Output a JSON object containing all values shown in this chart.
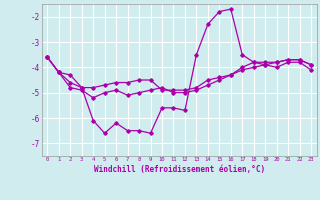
{
  "xlabel": "Windchill (Refroidissement éolien,°C)",
  "x_hours": [
    0,
    1,
    2,
    3,
    4,
    5,
    6,
    7,
    8,
    9,
    10,
    11,
    12,
    13,
    14,
    15,
    16,
    17,
    18,
    19,
    20,
    21,
    22,
    23
  ],
  "line1": [
    -3.6,
    -4.2,
    -4.3,
    -4.8,
    -6.1,
    -6.6,
    -6.2,
    -6.5,
    -6.5,
    -6.6,
    -5.6,
    -5.6,
    -5.7,
    -3.5,
    -2.3,
    -1.8,
    -1.7,
    -3.5,
    -3.8,
    -3.9,
    -4.0,
    -3.8,
    -3.8,
    -4.1
  ],
  "line2": [
    -3.6,
    -4.2,
    -4.6,
    -4.8,
    -4.8,
    -4.7,
    -4.6,
    -4.6,
    -4.5,
    -4.5,
    -4.9,
    -4.9,
    -4.9,
    -4.8,
    -4.5,
    -4.4,
    -4.3,
    -4.0,
    -3.8,
    -3.8,
    -3.8,
    -3.7,
    -3.7,
    -3.9
  ],
  "line3": [
    -3.6,
    -4.2,
    -4.8,
    -4.9,
    -5.2,
    -5.0,
    -4.9,
    -5.1,
    -5.0,
    -4.9,
    -4.8,
    -5.0,
    -5.0,
    -4.9,
    -4.7,
    -4.5,
    -4.3,
    -4.1,
    -4.0,
    -3.9,
    -3.8,
    -3.7,
    -3.7,
    -3.9
  ],
  "line_color": "#aa00aa",
  "bg_color": "#d0ecee",
  "grid_color": "#ffffff",
  "tick_label_color": "#aa00aa",
  "ylim": [
    -7.5,
    -1.5
  ],
  "yticks": [
    -7,
    -6,
    -5,
    -4,
    -3,
    -2
  ]
}
